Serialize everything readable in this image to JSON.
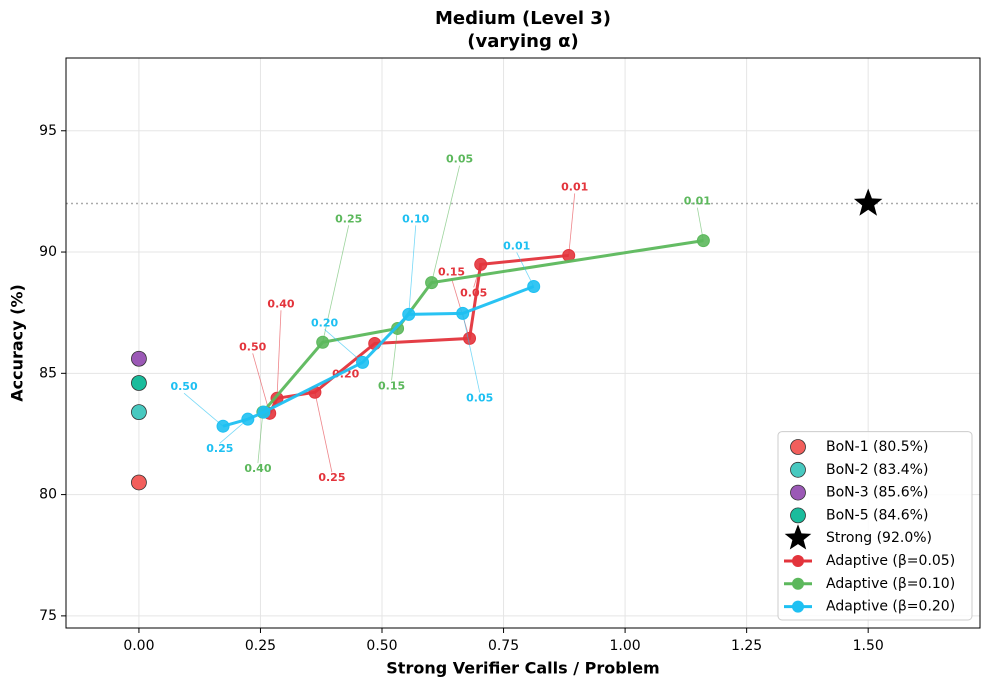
{
  "chart_data": {
    "type": "line",
    "title": "Medium (Level 3)",
    "subtitle": "(varying α)",
    "x_label": "Strong Verifier Calls / Problem",
    "y_label": "Accuracy (%)",
    "xlim": [
      -0.15,
      1.73
    ],
    "ylim": [
      74.5,
      98
    ],
    "xticks": [
      {
        "value": 0,
        "label": "0.00"
      },
      {
        "value": 0.25,
        "label": "0.25"
      },
      {
        "value": 0.5,
        "label": "0.50"
      },
      {
        "value": 0.75,
        "label": "0.75"
      },
      {
        "value": 1,
        "label": "1.00"
      },
      {
        "value": 1.25,
        "label": "1.25"
      },
      {
        "value": 1.5,
        "label": "1.50"
      }
    ],
    "yticks": [
      75,
      80,
      85,
      90,
      95
    ],
    "grid": true,
    "legend": "lower right",
    "reference_line": {
      "y": 92,
      "color": "#aaaaaa"
    },
    "series": [
      {
        "name": "BoN-1 (80.5%)",
        "color": "#f25f5c",
        "marker": "circle",
        "line": false,
        "x": [
          0
        ],
        "values": [
          80.5
        ]
      },
      {
        "name": "BoN-2 (83.4%)",
        "color": "#48c9c0",
        "marker": "circle",
        "line": false,
        "x": [
          0
        ],
        "values": [
          83.4
        ]
      },
      {
        "name": "BoN-3 (85.6%)",
        "color": "#9b59b6",
        "marker": "circle",
        "line": false,
        "x": [
          0
        ],
        "values": [
          85.6
        ]
      },
      {
        "name": "BoN-5 (84.6%)",
        "color": "#1abc9c",
        "marker": "circle",
        "line": false,
        "x": [
          0
        ],
        "values": [
          84.6
        ]
      },
      {
        "name": "Strong (92.0%)",
        "color": "#000000",
        "marker": "star",
        "line": false,
        "x": [
          1.5
        ],
        "values": [
          92.0
        ]
      },
      {
        "name": "Adaptive (β=0.05)",
        "color": "#e3343c",
        "marker": "circle",
        "line": true,
        "x": [
          0.269,
          0.284,
          0.362,
          0.485,
          0.68,
          0.703,
          0.884
        ],
        "values": [
          83.35,
          83.97,
          84.22,
          86.23,
          86.44,
          89.49,
          89.86
        ],
        "point_labels": [
          "0.50",
          "0.40",
          "0.25",
          "0.20",
          "0.15",
          "0.05",
          "0.01"
        ]
      },
      {
        "name": "Adaptive (β=0.10)",
        "color": "#5cb85c",
        "marker": "circle",
        "line": true,
        "x": [
          0.255,
          0.378,
          0.532,
          0.602,
          1.161
        ],
        "values": [
          83.4,
          86.28,
          86.85,
          88.74,
          90.47
        ],
        "point_labels": [
          "0.40",
          "0.25",
          "0.15",
          "0.05",
          "0.01"
        ]
      },
      {
        "name": "Adaptive (β=0.20)",
        "color": "#1ec0f2",
        "marker": "circle",
        "line": true,
        "x": [
          0.173,
          0.224,
          0.257,
          0.46,
          0.555,
          0.666,
          0.812
        ],
        "values": [
          82.82,
          83.11,
          83.4,
          85.45,
          87.43,
          87.47,
          88.58
        ],
        "point_labels": [
          "0.50",
          "0.25",
          null,
          "0.20",
          "0.10",
          "0.05",
          "0.01"
        ]
      }
    ]
  }
}
